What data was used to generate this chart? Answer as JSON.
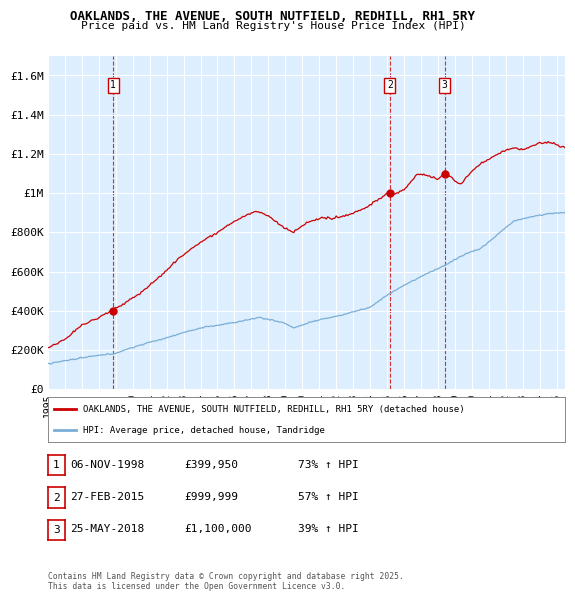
{
  "title": "OAKLANDS, THE AVENUE, SOUTH NUTFIELD, REDHILL, RH1 5RY",
  "subtitle": "Price paid vs. HM Land Registry's House Price Index (HPI)",
  "ylabel_ticks": [
    "£0",
    "£200K",
    "£400K",
    "£600K",
    "£800K",
    "£1M",
    "£1.2M",
    "£1.4M",
    "£1.6M"
  ],
  "ytick_values": [
    0,
    200000,
    400000,
    600000,
    800000,
    1000000,
    1200000,
    1400000,
    1600000
  ],
  "ylim": [
    0,
    1700000
  ],
  "sale_dates_num": [
    1998.85,
    2015.16,
    2018.4
  ],
  "sale_prices": [
    399950,
    999999,
    1100000
  ],
  "sale_labels": [
    "1",
    "2",
    "3"
  ],
  "red_line_color": "#cc0000",
  "blue_line_color": "#7aaed6",
  "plot_bg_color": "#ddeeff",
  "dashed_line_color": "#cc0000",
  "legend_label_red": "OAKLANDS, THE AVENUE, SOUTH NUTFIELD, REDHILL, RH1 5RY (detached house)",
  "legend_label_blue": "HPI: Average price, detached house, Tandridge",
  "table_data": [
    [
      "1",
      "06-NOV-1998",
      "£399,950",
      "73% ↑ HPI"
    ],
    [
      "2",
      "27-FEB-2015",
      "£999,999",
      "57% ↑ HPI"
    ],
    [
      "3",
      "25-MAY-2018",
      "£1,100,000",
      "39% ↑ HPI"
    ]
  ],
  "footer": "Contains HM Land Registry data © Crown copyright and database right 2025.\nThis data is licensed under the Open Government Licence v3.0.",
  "xmin": 1995.0,
  "xmax": 2025.5,
  "xticks": [
    1995,
    1996,
    1997,
    1998,
    1999,
    2000,
    2001,
    2002,
    2003,
    2004,
    2005,
    2006,
    2007,
    2008,
    2009,
    2010,
    2011,
    2012,
    2013,
    2014,
    2015,
    2016,
    2017,
    2018,
    2019,
    2020,
    2021,
    2022,
    2023,
    2024,
    2025
  ]
}
